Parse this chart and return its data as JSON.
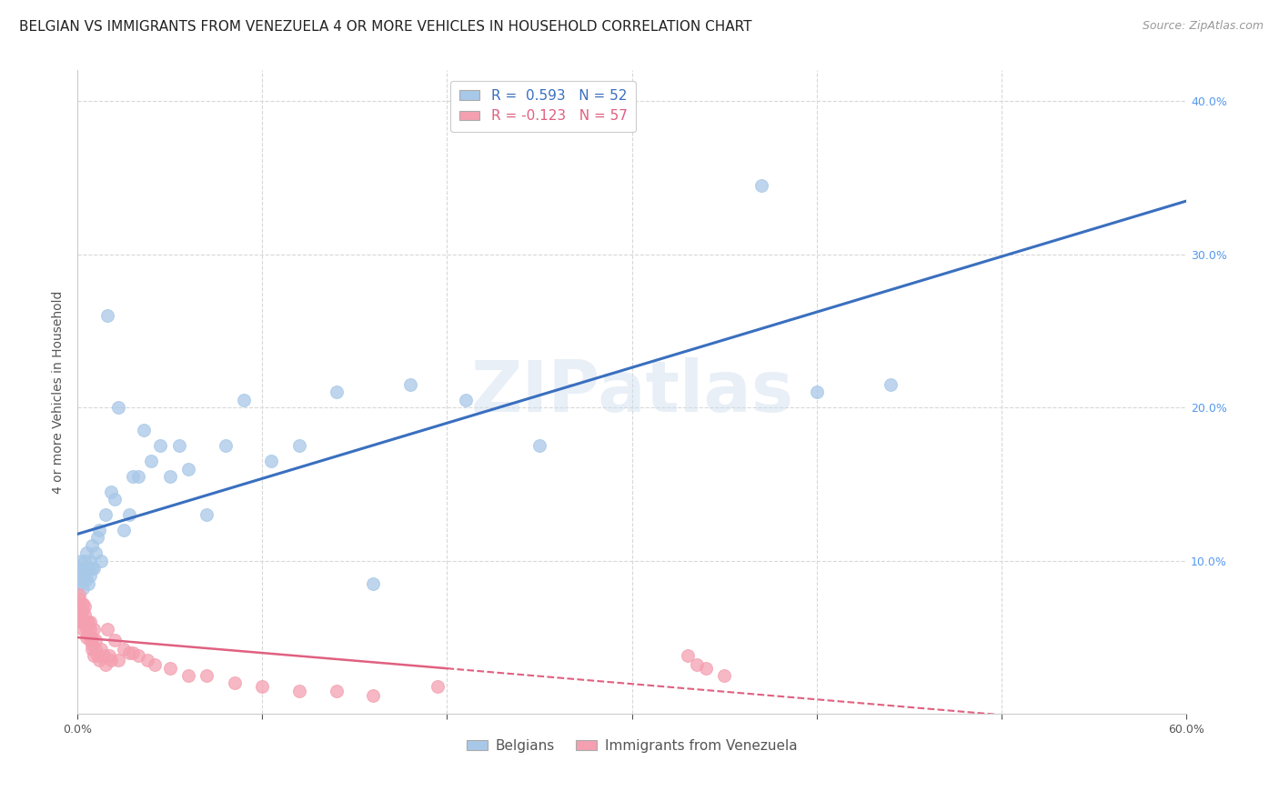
{
  "title": "BELGIAN VS IMMIGRANTS FROM VENEZUELA 4 OR MORE VEHICLES IN HOUSEHOLD CORRELATION CHART",
  "source": "Source: ZipAtlas.com",
  "ylabel": "4 or more Vehicles in Household",
  "xlim": [
    0.0,
    0.6
  ],
  "ylim": [
    0.0,
    0.42
  ],
  "yticks_right": [
    0.1,
    0.2,
    0.3,
    0.4
  ],
  "ytick_right_labels": [
    "10.0%",
    "20.0%",
    "30.0%",
    "40.0%"
  ],
  "belgian_color": "#a8c8e8",
  "venezuela_color": "#f4a0b0",
  "belgian_line_color": "#3a6fbf",
  "venezuela_line_color": "#e06080",
  "R_belgian": 0.593,
  "N_belgian": 52,
  "R_venezuela": -0.123,
  "N_venezuela": 57,
  "legend_label_1": "Belgians",
  "legend_label_2": "Immigrants from Venezuela",
  "watermark": "ZIPatlas",
  "belgian_x": [
    0.001,
    0.001,
    0.002,
    0.002,
    0.002,
    0.003,
    0.003,
    0.003,
    0.004,
    0.004,
    0.005,
    0.005,
    0.005,
    0.006,
    0.006,
    0.007,
    0.007,
    0.008,
    0.008,
    0.009,
    0.01,
    0.011,
    0.012,
    0.013,
    0.015,
    0.016,
    0.018,
    0.02,
    0.022,
    0.025,
    0.028,
    0.03,
    0.033,
    0.036,
    0.04,
    0.045,
    0.05,
    0.055,
    0.06,
    0.07,
    0.08,
    0.09,
    0.105,
    0.12,
    0.14,
    0.16,
    0.18,
    0.21,
    0.25,
    0.37,
    0.4,
    0.44
  ],
  "belgian_y": [
    0.085,
    0.092,
    0.088,
    0.095,
    0.1,
    0.09,
    0.095,
    0.082,
    0.092,
    0.1,
    0.088,
    0.095,
    0.105,
    0.085,
    0.095,
    0.09,
    0.1,
    0.095,
    0.11,
    0.095,
    0.105,
    0.115,
    0.12,
    0.1,
    0.13,
    0.26,
    0.145,
    0.14,
    0.2,
    0.12,
    0.13,
    0.155,
    0.155,
    0.185,
    0.165,
    0.175,
    0.155,
    0.175,
    0.16,
    0.13,
    0.175,
    0.205,
    0.165,
    0.175,
    0.21,
    0.085,
    0.215,
    0.205,
    0.175,
    0.345,
    0.21,
    0.215
  ],
  "venezuela_x": [
    0.001,
    0.001,
    0.001,
    0.002,
    0.002,
    0.002,
    0.003,
    0.003,
    0.003,
    0.003,
    0.004,
    0.004,
    0.004,
    0.005,
    0.005,
    0.005,
    0.006,
    0.006,
    0.007,
    0.007,
    0.007,
    0.008,
    0.008,
    0.008,
    0.009,
    0.009,
    0.01,
    0.01,
    0.011,
    0.012,
    0.013,
    0.014,
    0.015,
    0.016,
    0.017,
    0.018,
    0.02,
    0.022,
    0.025,
    0.028,
    0.03,
    0.033,
    0.038,
    0.042,
    0.05,
    0.06,
    0.07,
    0.085,
    0.1,
    0.12,
    0.14,
    0.16,
    0.195,
    0.33,
    0.335,
    0.34,
    0.35
  ],
  "venezuela_y": [
    0.07,
    0.075,
    0.078,
    0.06,
    0.065,
    0.072,
    0.055,
    0.062,
    0.068,
    0.072,
    0.058,
    0.065,
    0.07,
    0.05,
    0.06,
    0.055,
    0.052,
    0.06,
    0.048,
    0.055,
    0.06,
    0.042,
    0.05,
    0.045,
    0.038,
    0.055,
    0.042,
    0.048,
    0.038,
    0.035,
    0.042,
    0.038,
    0.032,
    0.055,
    0.038,
    0.035,
    0.048,
    0.035,
    0.042,
    0.04,
    0.04,
    0.038,
    0.035,
    0.032,
    0.03,
    0.025,
    0.025,
    0.02,
    0.018,
    0.015,
    0.015,
    0.012,
    0.018,
    0.038,
    0.032,
    0.03,
    0.025
  ],
  "background_color": "#ffffff",
  "grid_color": "#d8d8d8",
  "title_fontsize": 11,
  "source_fontsize": 9,
  "axis_label_fontsize": 10,
  "tick_fontsize": 9
}
